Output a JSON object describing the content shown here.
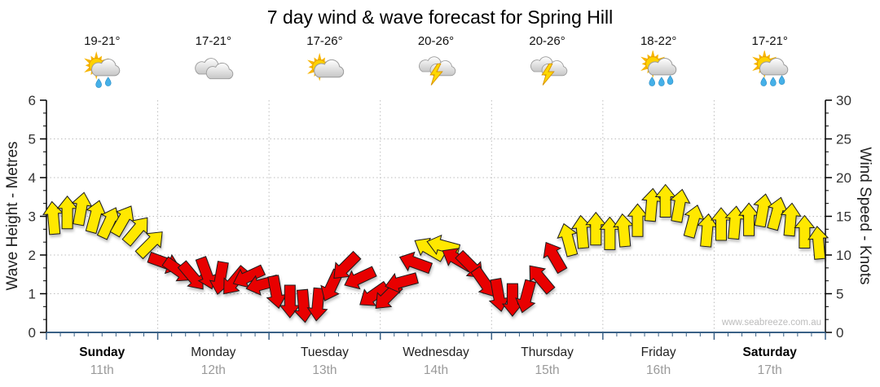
{
  "title": "7 day wind & wave forecast for Spring Hill",
  "watermark": "www.seabreeze.com.au",
  "axes": {
    "left_label": "Wave Height - Metres",
    "right_label": "Wind Speed - Knots",
    "left_ticks": [
      0,
      1,
      2,
      3,
      4,
      5,
      6
    ],
    "right_ticks": [
      0,
      5,
      10,
      15,
      20,
      25,
      30
    ]
  },
  "days": [
    {
      "name": "Sunday",
      "date": "11th",
      "temp": "19-21°",
      "icon": "sun-cloud-showers-light",
      "weekend": true
    },
    {
      "name": "Monday",
      "date": "12th",
      "temp": "17-21°",
      "icon": "cloudy",
      "weekend": false
    },
    {
      "name": "Tuesday",
      "date": "13th",
      "temp": "17-26°",
      "icon": "sun-cloud",
      "weekend": false
    },
    {
      "name": "Wednesday",
      "date": "14th",
      "temp": "20-26°",
      "icon": "thunderstorm",
      "weekend": false
    },
    {
      "name": "Thursday",
      "date": "15th",
      "temp": "20-26°",
      "icon": "thunderstorm",
      "weekend": false
    },
    {
      "name": "Friday",
      "date": "16th",
      "temp": "18-22°",
      "icon": "sun-cloud-showers",
      "weekend": false
    },
    {
      "name": "Saturday",
      "date": "17th",
      "temp": "17-21°",
      "icon": "sun-cloud-showers",
      "weekend": true
    }
  ],
  "chart_data": {
    "type": "wind-arrows",
    "title": "7 day wind & wave forecast for Spring Hill",
    "x_unit": "3-hourly steps, 8 per day over 7 days (Sun 11th - Sat 17th)",
    "ylabel_left": "Wave Height - Metres",
    "ylabel_right": "Wind Speed - Knots",
    "ylim_left_metres": [
      0,
      6
    ],
    "ylim_right_knots": [
      0,
      30
    ],
    "grid": true,
    "wind_speed_knots": [
      14.8,
      15.5,
      16,
      15,
      14.2,
      14.5,
      13.2,
      11.5,
      9,
      8,
      7.2,
      7.6,
      7,
      6.6,
      7.2,
      6.2,
      5.2,
      4,
      3.4,
      3.6,
      6,
      8.5,
      7,
      4.8,
      4.6,
      6.5,
      9,
      10.8,
      11.2,
      9.5,
      8.6,
      6.4,
      4.8,
      4.2,
      4.6,
      7,
      9.8,
      12,
      13,
      13.4,
      12.8,
      13.2,
      14.5,
      16.5,
      17,
      16.4,
      14.4,
      13.2,
      14,
      14.2,
      14.6,
      15.8,
      15.4,
      14.6,
      13,
      11.6
    ],
    "wind_direction_deg": [
      355,
      0,
      10,
      15,
      25,
      30,
      40,
      45,
      110,
      125,
      140,
      160,
      190,
      220,
      245,
      255,
      170,
      180,
      175,
      185,
      205,
      225,
      245,
      235,
      225,
      255,
      290,
      300,
      285,
      300,
      135,
      145,
      170,
      180,
      195,
      320,
      330,
      345,
      355,
      0,
      0,
      355,
      0,
      5,
      0,
      10,
      15,
      5,
      0,
      5,
      0,
      10,
      15,
      5,
      0,
      355
    ],
    "colors": {
      "arrow_strong": "#ffe800",
      "arrow_light": "#e80000",
      "arrow_outline": "#1a1a1a",
      "strong_threshold_knots": 10,
      "bottom_axis": "#3a6186",
      "grid": "#bdbdbd",
      "tick_text": "#333333"
    }
  }
}
